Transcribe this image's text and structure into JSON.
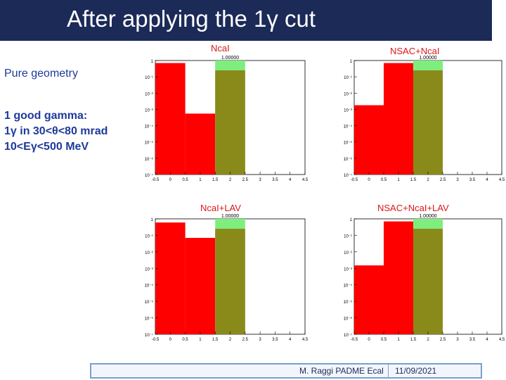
{
  "title": "After applying the 1γ cut",
  "side": {
    "pure": "Pure geometry",
    "line1": "1 good gamma:",
    "line2": "1γ in 30<θ<80 mrad",
    "line3": "10<Eγ<500 MeV"
  },
  "footer": {
    "author": "M. Raggi PADME Ecal",
    "date": "11/09/2021"
  },
  "colors": {
    "red": "#ff0000",
    "green": "#7fee7f",
    "olive": "#8a8a1a",
    "title_bg": "#1b2a57"
  },
  "chart_data": [
    {
      "type": "bar",
      "title": "NcaI",
      "yscale": "log",
      "xlim": [
        -0.5,
        4.5
      ],
      "ylim": [
        1e-07,
        1
      ],
      "xticks": [
        "-0.5",
        "0",
        "0.5",
        "1",
        "1.5",
        "2",
        "2.5",
        "3",
        "3.5",
        "4",
        "4.5"
      ],
      "yticks": [
        "1",
        "10⁻¹",
        "10⁻²",
        "10⁻³",
        "10⁻⁴",
        "10⁻⁵",
        "10⁻⁶",
        "10⁻⁷"
      ],
      "bins": [
        [
          -0.5,
          0.5,
          0.7
        ],
        [
          0.5,
          1.5,
          0.00055
        ],
        [
          1.5,
          2.5,
          1.0
        ]
      ],
      "overlay": {
        "x0": 1.5,
        "x1": 2.5,
        "y": 0.25
      },
      "annotation": "1.00000"
    },
    {
      "type": "bar",
      "title": "NSAC+NcaI",
      "yscale": "log",
      "xlim": [
        -0.5,
        4.5
      ],
      "ylim": [
        1e-07,
        1
      ],
      "xticks": [
        "-0.5",
        "0",
        "0.5",
        "1",
        "1.5",
        "2",
        "2.5",
        "3",
        "3.5",
        "4",
        "4.5"
      ],
      "yticks": [
        "1",
        "10⁻¹",
        "10⁻²",
        "10⁻³",
        "10⁻⁴",
        "10⁻⁵",
        "10⁻⁶",
        "10⁻⁷"
      ],
      "bins": [
        [
          -0.5,
          0.5,
          0.0018
        ],
        [
          0.5,
          1.5,
          0.7
        ],
        [
          1.5,
          2.5,
          1.0
        ]
      ],
      "overlay": {
        "x0": 1.5,
        "x1": 2.5,
        "y": 0.25
      },
      "annotation": "1.00000"
    },
    {
      "type": "bar",
      "title": "NcaI+LAV",
      "yscale": "log",
      "xlim": [
        -0.5,
        4.5
      ],
      "ylim": [
        1e-07,
        1
      ],
      "xticks": [
        "-0.5",
        "0",
        "0.5",
        "1",
        "1.5",
        "2",
        "2.5",
        "3",
        "3.5",
        "4",
        "4.5"
      ],
      "yticks": [
        "1",
        "10⁻¹",
        "10⁻²",
        "10⁻³",
        "10⁻⁴",
        "10⁻⁵",
        "10⁻⁶",
        "10⁻⁷"
      ],
      "bins": [
        [
          -0.5,
          0.5,
          0.6
        ],
        [
          0.5,
          1.5,
          0.07
        ],
        [
          1.5,
          2.5,
          1.0
        ]
      ],
      "overlay": {
        "x0": 1.5,
        "x1": 2.5,
        "y": 0.25
      },
      "annotation": "1.00000"
    },
    {
      "type": "bar",
      "title": "NSAC+NcaI+LAV",
      "yscale": "log",
      "xlim": [
        -0.5,
        4.5
      ],
      "ylim": [
        1e-07,
        1
      ],
      "xticks": [
        "-0.5",
        "0",
        "0.5",
        "1",
        "1.5",
        "2",
        "2.5",
        "3",
        "3.5",
        "4",
        "4.5"
      ],
      "yticks": [
        "1",
        "10⁻¹",
        "10⁻²",
        "10⁻³",
        "10⁻⁴",
        "10⁻⁵",
        "10⁻⁶",
        "10⁻⁷"
      ],
      "bins": [
        [
          -0.5,
          0.5,
          0.0015
        ],
        [
          0.5,
          1.5,
          0.7
        ],
        [
          1.5,
          2.5,
          1.0
        ]
      ],
      "overlay": {
        "x0": 1.5,
        "x1": 2.5,
        "y": 0.25
      },
      "annotation": "1.00000"
    }
  ]
}
